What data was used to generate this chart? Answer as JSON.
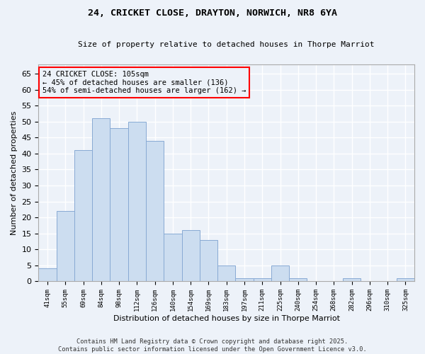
{
  "title1": "24, CRICKET CLOSE, DRAYTON, NORWICH, NR8 6YA",
  "title2": "Size of property relative to detached houses in Thorpe Marriot",
  "xlabel": "Distribution of detached houses by size in Thorpe Marriot",
  "ylabel": "Number of detached properties",
  "categories": [
    "41sqm",
    "55sqm",
    "69sqm",
    "84sqm",
    "98sqm",
    "112sqm",
    "126sqm",
    "140sqm",
    "154sqm",
    "169sqm",
    "183sqm",
    "197sqm",
    "211sqm",
    "225sqm",
    "240sqm",
    "254sqm",
    "268sqm",
    "282sqm",
    "296sqm",
    "310sqm",
    "325sqm"
  ],
  "values": [
    4,
    22,
    41,
    51,
    48,
    50,
    44,
    15,
    16,
    13,
    5,
    1,
    1,
    5,
    1,
    0,
    0,
    1,
    0,
    0,
    1
  ],
  "bar_color": "#ccddf0",
  "bar_edge_color": "#88aad4",
  "annotation_text": "24 CRICKET CLOSE: 105sqm\n← 45% of detached houses are smaller (136)\n54% of semi-detached houses are larger (162) →",
  "ylim": [
    0,
    68
  ],
  "yticks": [
    0,
    5,
    10,
    15,
    20,
    25,
    30,
    35,
    40,
    45,
    50,
    55,
    60,
    65
  ],
  "bg_color": "#edf2f9",
  "grid_color": "#ffffff",
  "footer": "Contains HM Land Registry data © Crown copyright and database right 2025.\nContains public sector information licensed under the Open Government Licence v3.0."
}
